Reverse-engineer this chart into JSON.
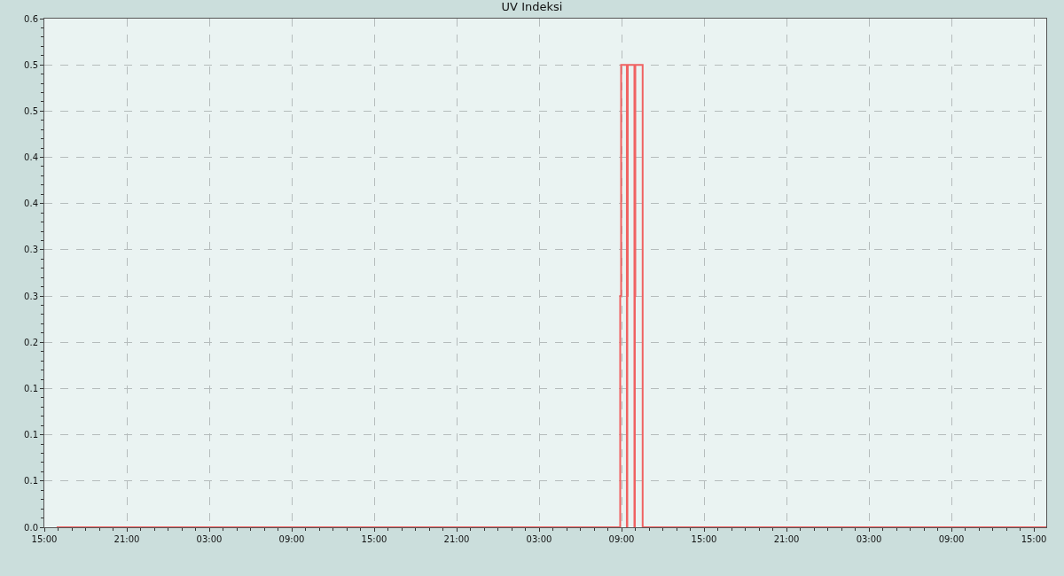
{
  "chart_data": {
    "type": "step",
    "title": "UV Indeksi",
    "x": [
      "--01-01T15:54",
      "--01-03T08:54",
      "--01-03T08:58",
      "--01-03T09:23",
      "--01-03T09:25",
      "--01-03T09:27",
      "--01-03T09:56",
      "--01-03T09:58",
      "--01-03T10:00",
      "--01-03T10:32",
      "--01-04T15:54"
    ],
    "series": [
      {
        "color": "#f06262",
        "values": [
          0,
          0.25,
          0.5,
          0,
          0.25,
          0.5,
          0,
          0.25,
          0.5,
          0,
          0
        ]
      }
    ],
    "xlim": [
      "--01-01T15:00",
      "--01-04T15:54"
    ],
    "xticks": [
      {
        "value": "--01-01T15:00",
        "label": "15:00"
      },
      {
        "value": "--01-01T21:00",
        "label": "21:00"
      },
      {
        "value": "--01-02T03:00",
        "label": "03:00"
      },
      {
        "value": "--01-02T09:00",
        "label": "09:00"
      },
      {
        "value": "--01-02T15:00",
        "label": "15:00"
      },
      {
        "value": "--01-02T21:00",
        "label": "21:00"
      },
      {
        "value": "--01-03T03:00",
        "label": "03:00"
      },
      {
        "value": "--01-03T09:00",
        "label": "09:00"
      },
      {
        "value": "--01-03T15:00",
        "label": "15:00"
      },
      {
        "value": "--01-03T21:00",
        "label": "21:00"
      },
      {
        "value": "--01-04T03:00",
        "label": "03:00"
      },
      {
        "value": "--01-04T09:00",
        "label": "09:00"
      },
      {
        "value": "--01-04T15:00",
        "label": "15:00"
      }
    ],
    "ylim": [
      0,
      0.55
    ],
    "yticks": [
      {
        "value": 0,
        "label": "0.0"
      },
      {
        "value": 0.05,
        "label": "0.1"
      },
      {
        "value": 0.1,
        "label": "0.1"
      },
      {
        "value": 0.15,
        "label": "0.1"
      },
      {
        "value": 0.2,
        "label": "0.2"
      },
      {
        "value": 0.25,
        "label": "0.3"
      },
      {
        "value": 0.3,
        "label": "0.3"
      },
      {
        "value": 0.35,
        "label": "0.4"
      },
      {
        "value": 0.4,
        "label": "0.4"
      },
      {
        "value": 0.45,
        "label": "0.5"
      },
      {
        "value": 0.5,
        "label": "0.5"
      },
      {
        "value": 0.55,
        "label": "0.6"
      }
    ],
    "grid": true,
    "legend": false,
    "line_style": "solid",
    "marker": "none"
  }
}
